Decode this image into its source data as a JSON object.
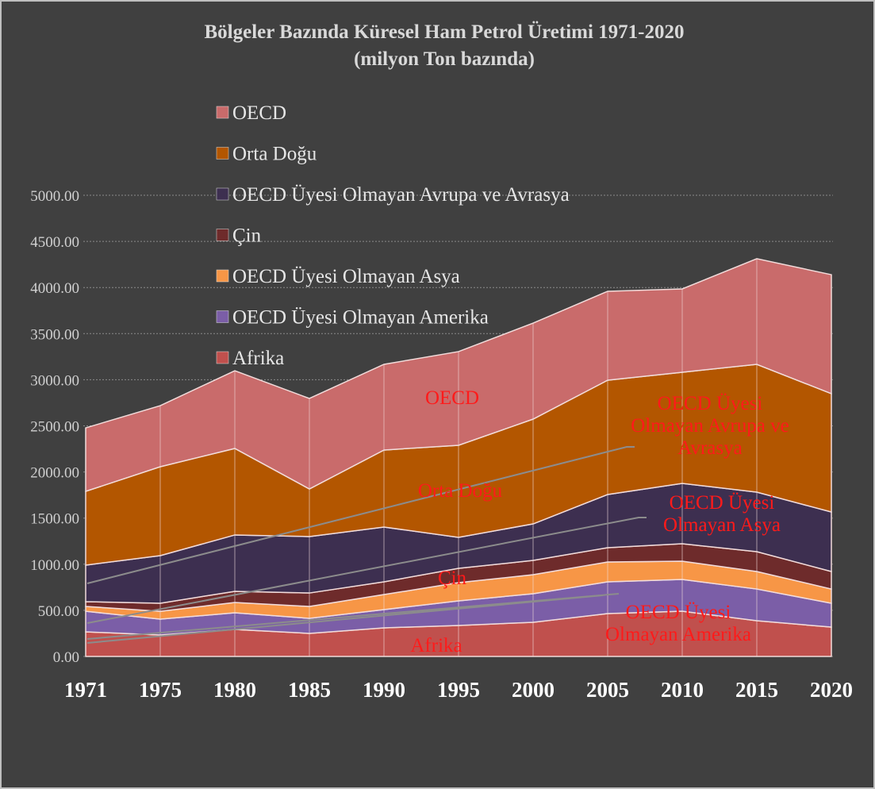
{
  "chart_data": {
    "type": "stacked_area",
    "title": "Bölgeler Bazında Küresel Ham Petrol Üretimi 1971-2020",
    "subtitle": "(milyon Ton bazında)",
    "categories": [
      "1971",
      "1975",
      "1980",
      "1985",
      "1990",
      "1995",
      "2000",
      "2005",
      "2010",
      "2015",
      "2020"
    ],
    "series": [
      {
        "name": "Afrika",
        "color": "#c0504d",
        "values": [
          267,
          232,
          293,
          250,
          310,
          336,
          370,
          465,
          490,
          387,
          318
        ]
      },
      {
        "name": "OECD Üyesi Olmayan Amerika",
        "color": "#7b5ea7",
        "values": [
          223,
          172,
          180,
          163,
          198,
          266,
          310,
          344,
          345,
          344,
          259
        ]
      },
      {
        "name": "OECD Üyesi Olmayan Asya",
        "color": "#f79646",
        "values": [
          52,
          86,
          112,
          129,
          163,
          198,
          206,
          215,
          198,
          190,
          154
        ]
      },
      {
        "name": "Çin",
        "color": "#6e2b2b",
        "values": [
          52,
          87,
          121,
          146,
          138,
          155,
          155,
          155,
          189,
          215,
          190
        ]
      },
      {
        "name": "OECD Üyesi Olmayan Avrupa ve Avrasya",
        "color": "#3d2f50",
        "values": [
          396,
          516,
          611,
          612,
          594,
          336,
          396,
          577,
          654,
          645,
          645
        ]
      },
      {
        "name": "Orta Doğu",
        "color": "#b35600",
        "values": [
          800,
          964,
          938,
          516,
          835,
          998,
          1136,
          1239,
          1205,
          1386,
          1283
        ]
      },
      {
        "name": "OECD",
        "color": "#c96b6b",
        "values": [
          688,
          662,
          843,
          981,
          929,
          1016,
          1041,
          964,
          904,
          1145,
          1290
        ]
      }
    ],
    "ylim": [
      0,
      5000
    ],
    "yticks": [
      {
        "value": 0,
        "label": "0.00"
      },
      {
        "value": 500,
        "label": "500.00"
      },
      {
        "value": 1000,
        "label": "1000.00"
      },
      {
        "value": 1500,
        "label": "1500.00"
      },
      {
        "value": 2000,
        "label": "2000.00"
      },
      {
        "value": 2500,
        "label": "2500.00"
      },
      {
        "value": 3000,
        "label": "3000.00"
      },
      {
        "value": 3500,
        "label": "3500.00"
      },
      {
        "value": 4000,
        "label": "4000.00"
      },
      {
        "value": 4500,
        "label": "4500.00"
      },
      {
        "value": 5000,
        "label": "5000.00"
      }
    ],
    "grid": true,
    "legend": "top"
  }
}
